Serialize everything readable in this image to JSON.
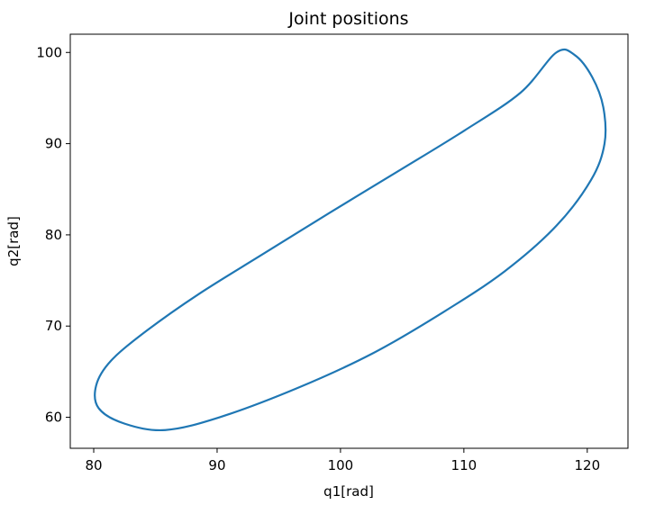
{
  "chart_data": {
    "type": "line",
    "title": "Joint positions",
    "xlabel": "q1[rad]",
    "ylabel": "q2[rad]",
    "xlim": [
      78.1,
      123.3
    ],
    "ylim": [
      56.6,
      102.0
    ],
    "xticks": [
      80,
      90,
      100,
      110,
      120
    ],
    "yticks": [
      60,
      70,
      80,
      90,
      100
    ],
    "grid": false,
    "legend": "none",
    "series": [
      {
        "color": "#1f77b4",
        "x": [
          117.5,
          119.0,
          120.4,
          121.3,
          121.4,
          120.3,
          117.5,
          113.3,
          108.3,
          102.6,
          96.5,
          90.2,
          85.8,
          82.5,
          80.4,
          80.2,
          81.4,
          84.3,
          88.5,
          93.6,
          99.1,
          104.7,
          110.0,
          114.6,
          117.5
        ],
        "y": [
          100.0,
          99.7,
          97.3,
          94.0,
          90.0,
          86.0,
          81.0,
          76.0,
          71.5,
          67.0,
          63.2,
          60.0,
          58.6,
          59.3,
          61.0,
          63.5,
          66.2,
          69.5,
          73.5,
          77.8,
          82.4,
          87.0,
          91.4,
          95.6,
          100.0
        ]
      }
    ]
  }
}
